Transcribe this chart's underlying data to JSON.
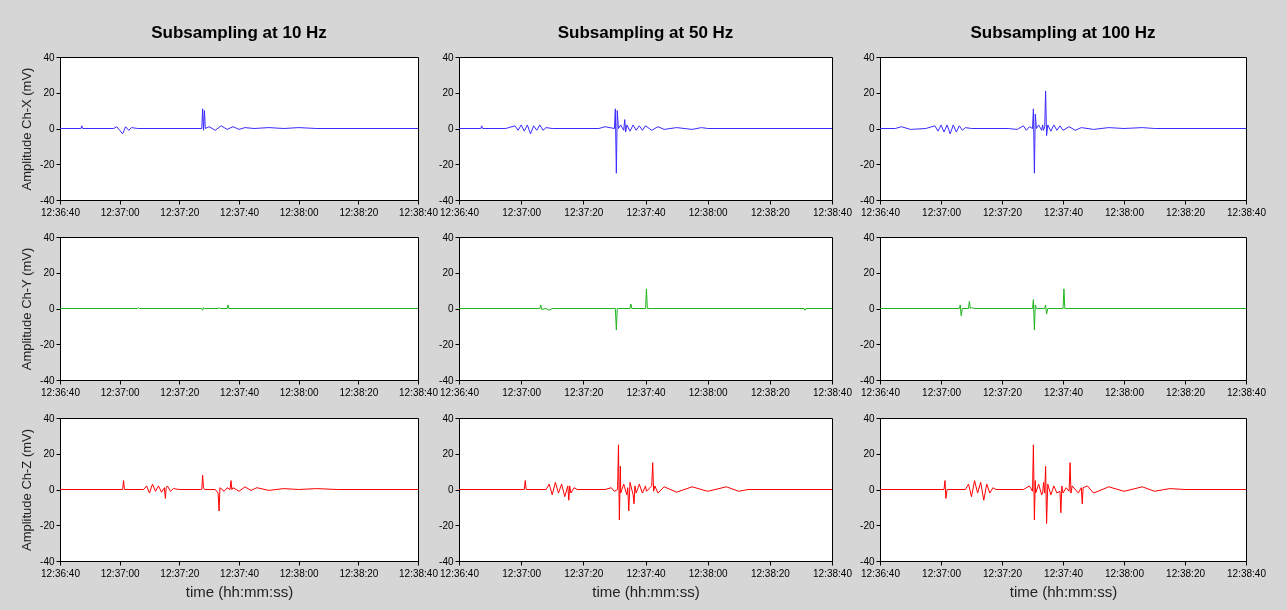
{
  "chart_data": [
    {
      "type": "line",
      "title": "Subsampling at 10 Hz",
      "ylabel": "Amplitude Ch-X (mV)",
      "x": [
        12.61111,
        12.61306,
        12.61314,
        12.61322,
        12.61611,
        12.61639,
        12.61667,
        12.61694,
        12.61722,
        12.6175,
        12.61778,
        12.61833,
        12.62431,
        12.62439,
        12.62447,
        12.62456,
        12.62464,
        12.625,
        12.62556,
        12.62611,
        12.62667,
        12.62722,
        12.62778,
        12.62833,
        12.62917,
        12.63056,
        12.63194,
        12.63333,
        12.635,
        12.64444
      ],
      "series": [
        {
          "color": "#3b2bff",
          "values": [
            0,
            0,
            1.5,
            0,
            0,
            1,
            -1,
            -3,
            1,
            -1,
            0.5,
            0,
            0,
            11,
            -1,
            10,
            0,
            1,
            -1,
            1.5,
            -0.5,
            1,
            -0.5,
            0.5,
            0,
            0.5,
            0,
            0.5,
            0,
            0
          ]
        }
      ],
      "xlim": [
        12.61111,
        12.64444
      ],
      "xticks": [
        {
          "value": 12.61111,
          "label": "12:36:40"
        },
        {
          "value": 12.61667,
          "label": "12:37:00"
        },
        {
          "value": 12.62222,
          "label": "12:37:20"
        },
        {
          "value": 12.62778,
          "label": "12:37:40"
        },
        {
          "value": 12.63333,
          "label": "12:38:00"
        },
        {
          "value": 12.63889,
          "label": "12:38:20"
        },
        {
          "value": 12.64444,
          "label": "12:38:40"
        }
      ],
      "ylim": [
        -40,
        40
      ],
      "yticks": [
        -40,
        -20,
        0,
        20,
        40
      ]
    },
    {
      "type": "line",
      "title": "Subsampling at 50 Hz",
      "x": [
        12.61111,
        12.61306,
        12.61314,
        12.61322,
        12.61528,
        12.61611,
        12.61639,
        12.61667,
        12.61694,
        12.61722,
        12.6175,
        12.61778,
        12.61806,
        12.61833,
        12.61861,
        12.61889,
        12.61944,
        12.62361,
        12.62417,
        12.625,
        12.62508,
        12.62517,
        12.62525,
        12.62536,
        12.62556,
        12.62583,
        12.62592,
        12.626,
        12.62611,
        12.62639,
        12.62667,
        12.62694,
        12.62722,
        12.6275,
        12.62778,
        12.62833,
        12.62889,
        12.62944,
        12.63056,
        12.63194,
        12.63278,
        12.63333,
        12.64444
      ],
      "series": [
        {
          "color": "#3b2bff",
          "values": [
            0,
            0,
            1.5,
            0,
            0,
            1.5,
            -1,
            2,
            -1.5,
            2,
            -3,
            1.5,
            -1,
            2,
            -1,
            0.5,
            0,
            0,
            1,
            0,
            11,
            -25,
            10,
            0,
            2,
            -1,
            5,
            -2,
            2,
            -1.5,
            2,
            -1,
            1.5,
            -1,
            1.5,
            -1,
            1,
            -0.5,
            0.5,
            -0.5,
            0.5,
            0,
            0
          ]
        }
      ],
      "xlim": [
        12.61111,
        12.64444
      ],
      "xticks": [
        {
          "value": 12.61111,
          "label": "12:36:40"
        },
        {
          "value": 12.61667,
          "label": "12:37:00"
        },
        {
          "value": 12.62222,
          "label": "12:37:20"
        },
        {
          "value": 12.62778,
          "label": "12:37:40"
        },
        {
          "value": 12.63333,
          "label": "12:38:00"
        },
        {
          "value": 12.63889,
          "label": "12:38:20"
        },
        {
          "value": 12.64444,
          "label": "12:38:40"
        }
      ],
      "ylim": [
        -40,
        40
      ],
      "yticks": [
        -40,
        -20,
        0,
        20,
        40
      ]
    },
    {
      "type": "line",
      "title": "Subsampling at 100 Hz",
      "x": [
        12.61111,
        12.6125,
        12.61306,
        12.61389,
        12.61528,
        12.61611,
        12.61639,
        12.61667,
        12.61694,
        12.61722,
        12.6175,
        12.61778,
        12.61806,
        12.61833,
        12.61861,
        12.61889,
        12.61944,
        12.62278,
        12.62361,
        12.62417,
        12.62444,
        12.62472,
        12.625,
        12.62508,
        12.62517,
        12.62525,
        12.62536,
        12.62556,
        12.62583,
        12.62592,
        12.626,
        12.62611,
        12.62619,
        12.62628,
        12.62639,
        12.62667,
        12.62694,
        12.62722,
        12.6275,
        12.62778,
        12.62833,
        12.62889,
        12.62944,
        12.63056,
        12.63194,
        12.63333,
        12.635,
        12.63611,
        12.64444
      ],
      "series": [
        {
          "color": "#3b2bff",
          "values": [
            0,
            0,
            1,
            -0.5,
            0,
            1.5,
            -1.5,
            2,
            -2,
            2,
            -3,
            2,
            -2,
            1.5,
            -1,
            0.5,
            0,
            0,
            -0.5,
            1.5,
            -1,
            1,
            0,
            11,
            -25,
            8,
            0,
            2,
            -1,
            2,
            -1,
            1,
            21,
            -4,
            2,
            -1.5,
            2,
            -1,
            1.5,
            -1,
            1,
            -1,
            0.5,
            -0.5,
            0.5,
            0,
            0.5,
            0,
            0
          ]
        }
      ],
      "xlim": [
        12.61111,
        12.64444
      ],
      "xticks": [
        {
          "value": 12.61111,
          "label": "12:36:40"
        },
        {
          "value": 12.61667,
          "label": "12:37:00"
        },
        {
          "value": 12.62222,
          "label": "12:37:20"
        },
        {
          "value": 12.62778,
          "label": "12:37:40"
        },
        {
          "value": 12.63333,
          "label": "12:38:00"
        },
        {
          "value": 12.63889,
          "label": "12:38:20"
        },
        {
          "value": 12.64444,
          "label": "12:38:40"
        }
      ],
      "ylim": [
        -40,
        40
      ],
      "yticks": [
        -40,
        -20,
        0,
        20,
        40
      ]
    },
    {
      "type": "line",
      "ylabel": "Amplitude Ch-Y (mV)",
      "x": [
        12.61111,
        12.61833,
        12.61842,
        12.6185,
        12.62431,
        12.62439,
        12.62447,
        12.62456,
        12.62583,
        12.62592,
        12.626,
        12.62667,
        12.62675,
        12.62683,
        12.64444
      ],
      "series": [
        {
          "color": "#1fb51f",
          "values": [
            0,
            0,
            0.5,
            0,
            0,
            -1,
            0.5,
            0,
            0,
            0.5,
            0,
            0,
            2,
            0,
            0
          ]
        }
      ],
      "xlim": [
        12.61111,
        12.64444
      ],
      "xticks": [
        {
          "value": 12.61111,
          "label": "12:36:40"
        },
        {
          "value": 12.61667,
          "label": "12:37:00"
        },
        {
          "value": 12.62222,
          "label": "12:37:20"
        },
        {
          "value": 12.62778,
          "label": "12:37:40"
        },
        {
          "value": 12.63333,
          "label": "12:38:00"
        },
        {
          "value": 12.63889,
          "label": "12:38:20"
        },
        {
          "value": 12.64444,
          "label": "12:38:40"
        }
      ],
      "ylim": [
        -40,
        40
      ],
      "yticks": [
        -40,
        -20,
        0,
        20,
        40
      ]
    },
    {
      "type": "line",
      "x": [
        12.61111,
        12.61833,
        12.61842,
        12.6185,
        12.61889,
        12.61917,
        12.61944,
        12.62508,
        12.62517,
        12.62525,
        12.62639,
        12.62647,
        12.62656,
        12.62778,
        12.62786,
        12.62794,
        12.62833,
        12.64194,
        12.64203,
        12.64211,
        12.64444
      ],
      "series": [
        {
          "color": "#1fb51f",
          "values": [
            0,
            0,
            2,
            -0.5,
            0,
            -1,
            0,
            0,
            -12,
            0,
            0,
            2.5,
            0,
            0,
            11,
            0,
            0,
            0,
            -1,
            0,
            0
          ]
        }
      ],
      "xlim": [
        12.61111,
        12.64444
      ],
      "xticks": [
        {
          "value": 12.61111,
          "label": "12:36:40"
        },
        {
          "value": 12.61667,
          "label": "12:37:00"
        },
        {
          "value": 12.62222,
          "label": "12:37:20"
        },
        {
          "value": 12.62778,
          "label": "12:37:40"
        },
        {
          "value": 12.63333,
          "label": "12:38:00"
        },
        {
          "value": 12.63889,
          "label": "12:38:20"
        },
        {
          "value": 12.64444,
          "label": "12:38:40"
        }
      ],
      "ylim": [
        -40,
        40
      ],
      "yticks": [
        -40,
        -20,
        0,
        20,
        40
      ]
    },
    {
      "type": "line",
      "x": [
        12.61111,
        12.61833,
        12.61842,
        12.6185,
        12.61861,
        12.61917,
        12.61925,
        12.61933,
        12.61944,
        12.61972,
        12.625,
        12.62508,
        12.62517,
        12.62525,
        12.62536,
        12.62611,
        12.62619,
        12.62628,
        12.62639,
        12.62778,
        12.62786,
        12.62794,
        12.64444
      ],
      "series": [
        {
          "color": "#1fb51f",
          "values": [
            0,
            0,
            2,
            -4,
            0,
            0,
            4,
            0,
            0.5,
            0,
            0,
            5,
            -12,
            2,
            0,
            0,
            2,
            -3,
            0,
            0,
            11,
            0,
            0
          ]
        }
      ],
      "xlim": [
        12.61111,
        12.64444
      ],
      "xticks": [
        {
          "value": 12.61111,
          "label": "12:36:40"
        },
        {
          "value": 12.61667,
          "label": "12:37:00"
        },
        {
          "value": 12.62222,
          "label": "12:37:20"
        },
        {
          "value": 12.62778,
          "label": "12:37:40"
        },
        {
          "value": 12.63333,
          "label": "12:38:00"
        },
        {
          "value": 12.63889,
          "label": "12:38:20"
        },
        {
          "value": 12.64444,
          "label": "12:38:40"
        }
      ],
      "ylim": [
        -40,
        40
      ],
      "yticks": [
        -40,
        -20,
        0,
        20,
        40
      ]
    },
    {
      "type": "line",
      "ylabel": "Amplitude Ch-Z (mV)",
      "xlabel": "time (hh:mm:ss)",
      "x": [
        12.61111,
        12.61694,
        12.61703,
        12.61711,
        12.61889,
        12.61917,
        12.61944,
        12.61972,
        12.62,
        12.62028,
        12.62056,
        12.62083,
        12.62092,
        12.621,
        12.62111,
        12.62139,
        12.62167,
        12.62222,
        12.62417,
        12.62431,
        12.62439,
        12.62447,
        12.62456,
        12.62556,
        12.62583,
        12.62592,
        12.626,
        12.62639,
        12.62667,
        12.62694,
        12.62703,
        12.62711,
        12.62722,
        12.62778,
        12.62833,
        12.62889,
        12.62944,
        12.63056,
        12.63194,
        12.63333,
        12.635,
        12.63694,
        12.64444
      ],
      "series": [
        {
          "color": "#ff0000",
          "values": [
            0,
            0,
            5,
            0,
            0,
            2,
            -2,
            3,
            -1,
            2,
            -1.5,
            1,
            -5,
            1,
            2,
            -1,
            0.5,
            0,
            0,
            0,
            8,
            1,
            0,
            0,
            -2,
            -12,
            1,
            -1,
            1,
            0,
            5,
            0,
            1,
            -1,
            1.5,
            -0.5,
            1,
            -0.5,
            0.5,
            0,
            0.5,
            0,
            0
          ]
        }
      ],
      "xlim": [
        12.61111,
        12.64444
      ],
      "xticks": [
        {
          "value": 12.61111,
          "label": "12:36:40"
        },
        {
          "value": 12.61667,
          "label": "12:37:00"
        },
        {
          "value": 12.62222,
          "label": "12:37:20"
        },
        {
          "value": 12.62778,
          "label": "12:37:40"
        },
        {
          "value": 12.63333,
          "label": "12:38:00"
        },
        {
          "value": 12.63889,
          "label": "12:38:20"
        },
        {
          "value": 12.64444,
          "label": "12:38:40"
        }
      ],
      "ylim": [
        -40,
        40
      ],
      "yticks": [
        -40,
        -20,
        0,
        20,
        40
      ]
    },
    {
      "type": "line",
      "xlabel": "time (hh:mm:ss)",
      "x": [
        12.61111,
        12.61694,
        12.61703,
        12.61711,
        12.61889,
        12.61917,
        12.61944,
        12.61972,
        12.62,
        12.62028,
        12.62056,
        12.62083,
        12.62092,
        12.621,
        12.62111,
        12.62139,
        12.62167,
        12.62417,
        12.62472,
        12.625,
        12.62528,
        12.62536,
        12.62544,
        12.62553,
        12.62556,
        12.62583,
        12.62611,
        12.62619,
        12.62628,
        12.62639,
        12.62667,
        12.62675,
        12.62683,
        12.62694,
        12.62722,
        12.6275,
        12.62778,
        12.62786,
        12.62833,
        12.62842,
        12.6285,
        12.62861,
        12.62889,
        12.62944,
        12.63056,
        12.63194,
        12.63333,
        12.635,
        12.63611,
        12.63694,
        12.64444
      ],
      "series": [
        {
          "color": "#ff0000",
          "values": [
            0,
            0,
            5,
            0,
            0,
            3,
            -3,
            4,
            -2,
            3,
            -4,
            2,
            -6,
            2,
            -2,
            1,
            0,
            0,
            1,
            -1,
            0,
            25,
            -17,
            13,
            -2,
            3,
            -3,
            1,
            -12,
            4,
            -3,
            -8,
            2,
            -2,
            3,
            -2,
            2,
            -1,
            2,
            15,
            -1,
            2,
            -2,
            1.5,
            -1.5,
            1.5,
            -1,
            1.5,
            -1,
            0,
            0
          ]
        }
      ],
      "xlim": [
        12.61111,
        12.64444
      ],
      "xticks": [
        {
          "value": 12.61111,
          "label": "12:36:40"
        },
        {
          "value": 12.61667,
          "label": "12:37:00"
        },
        {
          "value": 12.62222,
          "label": "12:37:20"
        },
        {
          "value": 12.62778,
          "label": "12:37:40"
        },
        {
          "value": 12.63333,
          "label": "12:38:00"
        },
        {
          "value": 12.63889,
          "label": "12:38:20"
        },
        {
          "value": 12.64444,
          "label": "12:38:40"
        }
      ],
      "ylim": [
        -40,
        40
      ],
      "yticks": [
        -40,
        -20,
        0,
        20,
        40
      ]
    },
    {
      "type": "line",
      "xlabel": "time (hh:mm:ss)",
      "x": [
        12.61111,
        12.61694,
        12.61703,
        12.61711,
        12.61722,
        12.61889,
        12.61917,
        12.61944,
        12.61972,
        12.62,
        12.62028,
        12.62056,
        12.62083,
        12.62111,
        12.62139,
        12.62167,
        12.62417,
        12.62472,
        12.625,
        12.62508,
        12.62517,
        12.62525,
        12.62528,
        12.62556,
        12.62583,
        12.62592,
        12.626,
        12.62611,
        12.62619,
        12.62628,
        12.62639,
        12.62667,
        12.62694,
        12.62722,
        12.6275,
        12.62758,
        12.62767,
        12.62778,
        12.62806,
        12.62833,
        12.62842,
        12.6285,
        12.62861,
        12.62917,
        12.62944,
        12.62953,
        12.62961,
        12.63,
        12.63056,
        12.63194,
        12.63333,
        12.635,
        12.63611,
        12.6375,
        12.63889,
        12.64444
      ],
      "series": [
        {
          "color": "#ff0000",
          "values": [
            0,
            0,
            5,
            -5,
            0,
            0,
            3,
            -4,
            5,
            -2,
            4,
            -6,
            3,
            -2,
            1,
            0,
            0,
            2,
            -1,
            25,
            -17,
            5,
            -2,
            3,
            -3,
            -2,
            4,
            -2,
            13,
            -19,
            3,
            -3,
            2,
            -2,
            -1,
            -13,
            2,
            -2,
            1,
            -1,
            15,
            -2,
            2,
            -2,
            1,
            -8,
            1,
            2,
            -2,
            1.5,
            -1,
            1.5,
            -1,
            0.5,
            0,
            0
          ]
        }
      ],
      "xlim": [
        12.61111,
        12.64444
      ],
      "xticks": [
        {
          "value": 12.61111,
          "label": "12:36:40"
        },
        {
          "value": 12.61667,
          "label": "12:37:00"
        },
        {
          "value": 12.62222,
          "label": "12:37:20"
        },
        {
          "value": 12.62778,
          "label": "12:37:40"
        },
        {
          "value": 12.63333,
          "label": "12:38:00"
        },
        {
          "value": 12.63889,
          "label": "12:38:20"
        },
        {
          "value": 12.64444,
          "label": "12:38:40"
        }
      ],
      "ylim": [
        -40,
        40
      ],
      "yticks": [
        -40,
        -20,
        0,
        20,
        40
      ]
    }
  ]
}
